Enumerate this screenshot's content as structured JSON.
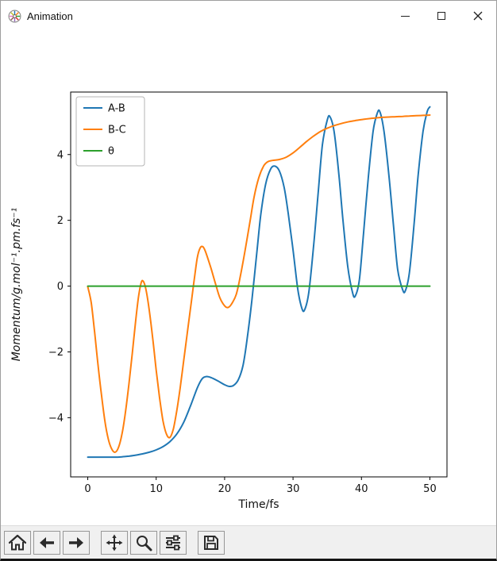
{
  "window": {
    "title": "Animation"
  },
  "toolbar": {
    "buttons": [
      {
        "name": "home"
      },
      {
        "name": "back"
      },
      {
        "name": "forward"
      },
      {
        "name": "pan"
      },
      {
        "name": "zoom"
      },
      {
        "name": "configure-subplots"
      },
      {
        "name": "save"
      }
    ]
  },
  "chart_data": {
    "type": "line",
    "title": "",
    "xlabel": "Time/fs",
    "ylabel": "Momentum/g.mol⁻¹.pm.fs⁻¹",
    "xlim": [
      -2.5,
      52.5
    ],
    "ylim": [
      -5.8,
      5.9
    ],
    "xticks": [
      0,
      10,
      20,
      30,
      40,
      50
    ],
    "yticks": [
      -4,
      -2,
      0,
      2,
      4
    ],
    "grid": false,
    "legend_position": "upper left",
    "series": [
      {
        "name": "A-B",
        "color": "#1f77b4",
        "points": [
          [
            0,
            -5.2
          ],
          [
            2,
            -5.2
          ],
          [
            4,
            -5.2
          ],
          [
            5,
            -5.19
          ],
          [
            6,
            -5.17
          ],
          [
            7,
            -5.14
          ],
          [
            8,
            -5.1
          ],
          [
            9,
            -5.05
          ],
          [
            10,
            -4.98
          ],
          [
            11,
            -4.88
          ],
          [
            12,
            -4.73
          ],
          [
            13,
            -4.5
          ],
          [
            14,
            -4.15
          ],
          [
            15,
            -3.65
          ],
          [
            16,
            -3.1
          ],
          [
            16.7,
            -2.82
          ],
          [
            17.3,
            -2.75
          ],
          [
            18,
            -2.78
          ],
          [
            19,
            -2.88
          ],
          [
            20,
            -3.0
          ],
          [
            20.7,
            -3.05
          ],
          [
            21.3,
            -3.02
          ],
          [
            22,
            -2.85
          ],
          [
            22.7,
            -2.4
          ],
          [
            23.3,
            -1.6
          ],
          [
            24,
            -0.4
          ],
          [
            24.7,
            1.0
          ],
          [
            25.3,
            2.2
          ],
          [
            26,
            3.1
          ],
          [
            26.7,
            3.55
          ],
          [
            27.3,
            3.65
          ],
          [
            28,
            3.5
          ],
          [
            28.7,
            3.0
          ],
          [
            29.3,
            2.2
          ],
          [
            30,
            1.1
          ],
          [
            30.7,
            -0.1
          ],
          [
            31.3,
            -0.68
          ],
          [
            31.7,
            -0.72
          ],
          [
            32.3,
            -0.2
          ],
          [
            33,
            1.2
          ],
          [
            33.7,
            2.9
          ],
          [
            34.3,
            4.3
          ],
          [
            35,
            5.05
          ],
          [
            35.4,
            5.15
          ],
          [
            36,
            4.7
          ],
          [
            36.7,
            3.4
          ],
          [
            37.3,
            2.0
          ],
          [
            38,
            0.6
          ],
          [
            38.7,
            -0.2
          ],
          [
            39.1,
            -0.3
          ],
          [
            39.7,
            0.2
          ],
          [
            40.3,
            1.6
          ],
          [
            41,
            3.3
          ],
          [
            41.7,
            4.7
          ],
          [
            42.3,
            5.25
          ],
          [
            42.7,
            5.3
          ],
          [
            43.3,
            4.7
          ],
          [
            44,
            3.4
          ],
          [
            44.7,
            1.8
          ],
          [
            45.3,
            0.5
          ],
          [
            46,
            -0.1
          ],
          [
            46.4,
            -0.15
          ],
          [
            47,
            0.4
          ],
          [
            47.7,
            1.9
          ],
          [
            48.3,
            3.4
          ],
          [
            49,
            4.7
          ],
          [
            49.6,
            5.3
          ],
          [
            50,
            5.45
          ]
        ]
      },
      {
        "name": "B-C",
        "color": "#ff7f0e",
        "points": [
          [
            0,
            -0.02
          ],
          [
            0.5,
            -0.5
          ],
          [
            1,
            -1.4
          ],
          [
            1.5,
            -2.4
          ],
          [
            2,
            -3.3
          ],
          [
            2.5,
            -4.1
          ],
          [
            3,
            -4.65
          ],
          [
            3.5,
            -4.95
          ],
          [
            4,
            -5.05
          ],
          [
            4.5,
            -4.9
          ],
          [
            5,
            -4.5
          ],
          [
            5.5,
            -3.85
          ],
          [
            6,
            -3.0
          ],
          [
            6.5,
            -2.05
          ],
          [
            7,
            -1.05
          ],
          [
            7.4,
            -0.35
          ],
          [
            7.8,
            0.1
          ],
          [
            8.1,
            0.15
          ],
          [
            8.5,
            -0.1
          ],
          [
            9,
            -0.75
          ],
          [
            9.5,
            -1.6
          ],
          [
            10,
            -2.55
          ],
          [
            10.5,
            -3.4
          ],
          [
            11,
            -4.1
          ],
          [
            11.5,
            -4.5
          ],
          [
            12,
            -4.6
          ],
          [
            12.5,
            -4.35
          ],
          [
            13,
            -3.8
          ],
          [
            13.5,
            -3.1
          ],
          [
            14,
            -2.3
          ],
          [
            14.5,
            -1.5
          ],
          [
            15,
            -0.7
          ],
          [
            15.5,
            0.1
          ],
          [
            16,
            0.85
          ],
          [
            16.4,
            1.15
          ],
          [
            16.8,
            1.2
          ],
          [
            17.2,
            1.05
          ],
          [
            18,
            0.55
          ],
          [
            18.7,
            0.05
          ],
          [
            19.3,
            -0.35
          ],
          [
            20,
            -0.6
          ],
          [
            20.5,
            -0.65
          ],
          [
            21,
            -0.55
          ],
          [
            21.7,
            -0.25
          ],
          [
            22.3,
            0.3
          ],
          [
            23,
            1.1
          ],
          [
            23.7,
            1.95
          ],
          [
            24.3,
            2.7
          ],
          [
            25,
            3.3
          ],
          [
            25.7,
            3.65
          ],
          [
            26.3,
            3.78
          ],
          [
            27,
            3.82
          ],
          [
            28,
            3.85
          ],
          [
            29,
            3.92
          ],
          [
            30,
            4.05
          ],
          [
            31,
            4.22
          ],
          [
            32,
            4.4
          ],
          [
            33,
            4.56
          ],
          [
            34,
            4.7
          ],
          [
            35,
            4.8
          ],
          [
            36,
            4.88
          ],
          [
            37,
            4.94
          ],
          [
            38,
            4.99
          ],
          [
            39,
            5.03
          ],
          [
            40,
            5.06
          ],
          [
            41,
            5.09
          ],
          [
            42,
            5.11
          ],
          [
            43,
            5.13
          ],
          [
            44,
            5.14
          ],
          [
            45,
            5.15
          ],
          [
            46,
            5.16
          ],
          [
            47,
            5.17
          ],
          [
            48,
            5.18
          ],
          [
            49,
            5.19
          ],
          [
            50,
            5.2
          ]
        ]
      },
      {
        "name": "θ",
        "color": "#2ca02c",
        "points": [
          [
            0,
            0
          ],
          [
            50,
            0
          ]
        ]
      }
    ]
  }
}
